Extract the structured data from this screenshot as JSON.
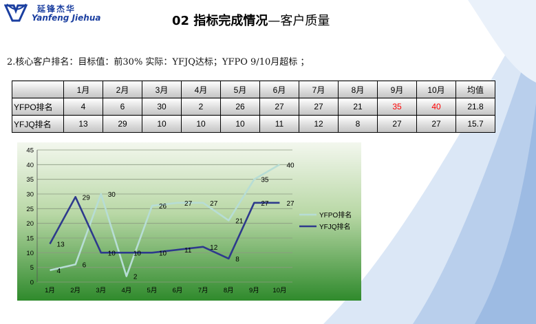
{
  "logo": {
    "cn": "延锋杰华",
    "en": "Yanfeng Jiehua"
  },
  "title": {
    "bold": "02 指标完成情况",
    "dash": "—",
    "rest": "客户质量"
  },
  "subtitle": "2.核心客户排名：目标值：前30%  实际：YFJQ达标；YFPO 9/10月超标 ；",
  "table": {
    "headers": [
      "",
      "1月",
      "2月",
      "3月",
      "4月",
      "5月",
      "6月",
      "7月",
      "8月",
      "9月",
      "10月",
      "均值"
    ],
    "rows": [
      {
        "name": "YFPO排名",
        "cells": [
          "4",
          "6",
          "30",
          "2",
          "26",
          "27",
          "27",
          "21",
          "35",
          "40",
          "21.8"
        ],
        "red_indices": [
          8,
          9
        ]
      },
      {
        "name": "YFJQ排名",
        "cells": [
          "13",
          "29",
          "10",
          "10",
          "10",
          "11",
          "12",
          "8",
          "27",
          "27",
          "15.7"
        ],
        "red_indices": []
      }
    ]
  },
  "colors": {
    "yfpo_line": "#b7ddd5",
    "yfjq_line": "#2e3a8c",
    "red": "#ff0000",
    "brand": "#1b3fa0"
  },
  "chart_data": {
    "type": "line",
    "categories": [
      "1月",
      "2月",
      "3月",
      "4月",
      "5月",
      "6月",
      "7月",
      "8月",
      "9月",
      "10月"
    ],
    "series": [
      {
        "name": "YFPO排名",
        "values": [
          4,
          6,
          30,
          2,
          26,
          27,
          27,
          21,
          35,
          40
        ]
      },
      {
        "name": "YFJQ排名",
        "values": [
          13,
          29,
          10,
          10,
          10,
          11,
          12,
          8,
          27,
          27
        ]
      }
    ],
    "yticks": [
      "0",
      "5",
      "10",
      "15",
      "20",
      "25",
      "30",
      "35",
      "40",
      "45"
    ],
    "ylim": [
      0,
      45
    ],
    "grid": true,
    "legend": "right"
  }
}
